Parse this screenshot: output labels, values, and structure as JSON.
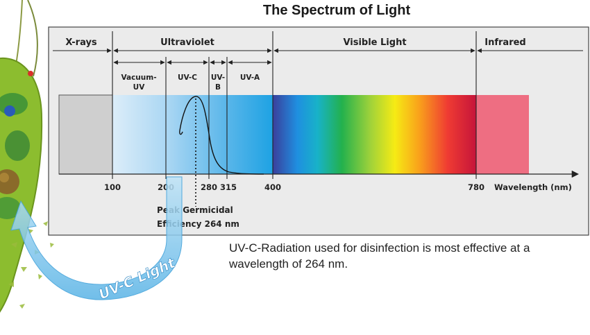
{
  "title": "The Spectrum of Light",
  "regions": {
    "xrays": "X-rays",
    "ultraviolet": "Ultraviolet",
    "visible": "Visible Light",
    "infrared": "Infrared"
  },
  "subregions": {
    "vacuum_uv_line1": "Vacuum-",
    "vacuum_uv_line2": "UV",
    "uvc": "UV-C",
    "uvb_line1": "UV-",
    "uvb_line2": "B",
    "uva": "UV-A"
  },
  "ticks": [
    "100",
    "200",
    "280",
    "315",
    "400",
    "780"
  ],
  "axis_label": "Wavelength (nm)",
  "peak_label_line1": "Peak Germicidal",
  "peak_label_line2": "Efficiency 264 nm",
  "caption": "UV-C-Radiation used for disinfection is most effective at a wavelength of 264 nm.",
  "arrow_label": "UV-C Light",
  "colors": {
    "panel": "#ebebeb",
    "xray_band": "#cfcfcf",
    "infrared_band": "#ee6e82",
    "uv_light": "#d9ecf9",
    "uv_mid": "#5fbbea",
    "arrow": "#5ab4e6",
    "organism": "#8cbd2f"
  }
}
